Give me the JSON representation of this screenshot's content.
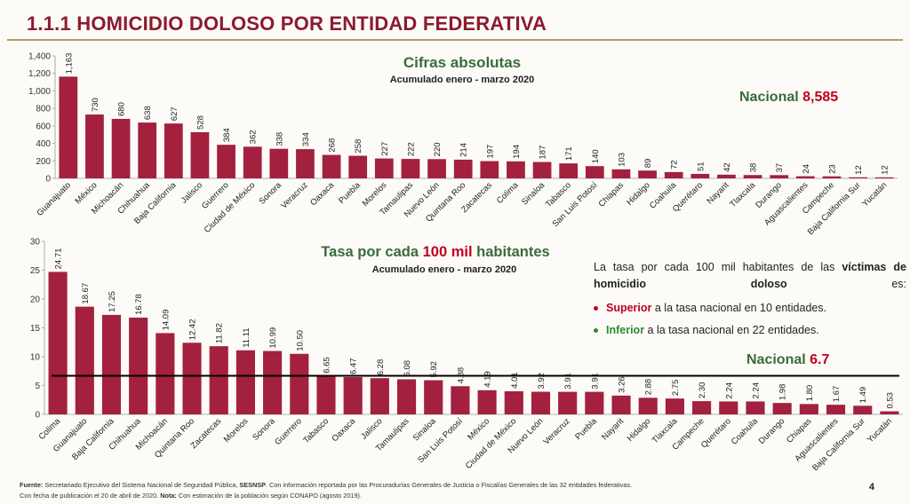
{
  "slide": {
    "title": "1.1.1 HOMICIDIO DOLOSO POR ENTIDAD FEDERATIVA",
    "page_number": "4",
    "footer": {
      "line1_bold": "Fuente:",
      "line1_a": " Secretariado Ejecutivo del Sistema Nacional de Seguridad Pública, ",
      "line1_bold2": "SESNSP",
      "line1_b": ". Con información reportada por las Procuradurías Generales de Justicia o Fiscalías Generales de las 32 entidades federativas.",
      "line2_a": "Con fecha de publicación el 20 de abril de 2020. ",
      "line2_bold": "Nota:",
      "line2_b": " Con estimación de la población según CONAPO (agosto 2019)."
    },
    "note": {
      "intro_a": "La tasa por cada 100 mil habitantes de las ",
      "intro_bold": "víctimas de homicidio doloso",
      "intro_b": " es:",
      "item1_bold": "Superior",
      "item1_rest": " a la tasa nacional en 10 entidades.",
      "item2_bold": "Inferior",
      "item2_rest": " a la tasa nacional en 22 entidades.",
      "superior_color": "#c0001b",
      "inferior_color": "#2e8b2e"
    }
  },
  "chart_data": [
    {
      "type": "bar",
      "title": "Cifras absolutas",
      "subtitle": "Acumulado enero - marzo 2020",
      "national_label": "Nacional",
      "national_value": "8,585",
      "ylim": [
        0,
        1400
      ],
      "yticks": [
        "0",
        "200",
        "400",
        "600",
        "800",
        "1,000",
        "1,200",
        "1,400"
      ],
      "bar_color": "#a3213e",
      "categories": [
        "Guanajuato",
        "México",
        "Michoacán",
        "Chihuahua",
        "Baja California",
        "Jalisco",
        "Guerrero",
        "Ciudad de México",
        "Sonora",
        "Veracruz",
        "Oaxaca",
        "Puebla",
        "Morelos",
        "Tamaulipas",
        "Nuevo León",
        "Quintana Roo",
        "Zacatecas",
        "Colima",
        "Sinaloa",
        "Tabasco",
        "San Luis Potosí",
        "Chiapas",
        "Hidalgo",
        "Coahuila",
        "Querétaro",
        "Nayarit",
        "Tlaxcala",
        "Durango",
        "Aguascalientes",
        "Campeche",
        "Baja California Sur",
        "Yucatán"
      ],
      "values": [
        1163,
        730,
        680,
        638,
        627,
        528,
        384,
        362,
        338,
        334,
        268,
        258,
        227,
        222,
        220,
        214,
        197,
        194,
        187,
        171,
        140,
        103,
        89,
        72,
        51,
        42,
        38,
        37,
        24,
        23,
        12,
        12
      ],
      "value_labels": [
        "1,163",
        "730",
        "680",
        "638",
        "627",
        "528",
        "384",
        "362",
        "338",
        "334",
        "268",
        "258",
        "227",
        "222",
        "220",
        "214",
        "197",
        "194",
        "187",
        "171",
        "140",
        "103",
        "89",
        "72",
        "51",
        "42",
        "38",
        "37",
        "24",
        "23",
        "12",
        "12"
      ]
    },
    {
      "type": "bar",
      "title_a": "Tasa por cada ",
      "title_red": "100 mil",
      "title_b": " habitantes",
      "subtitle": "Acumulado enero - marzo 2020",
      "national_label": "Nacional",
      "national_value": "6.7",
      "reference_value": 6.7,
      "ylim": [
        0,
        30
      ],
      "yticks": [
        "0",
        "5",
        "10",
        "15",
        "20",
        "25",
        "30"
      ],
      "bar_color": "#a3213e",
      "categories": [
        "Colima",
        "Guanajuato",
        "Baja California",
        "Chihuahua",
        "Michoacán",
        "Quintana Roo",
        "Zacatecas",
        "Morelos",
        "Sonora",
        "Guerrero",
        "Tabasco",
        "Oaxaca",
        "Jalisco",
        "Tamaulipas",
        "Sinaloa",
        "San Luis Potosí",
        "México",
        "Ciudad de México",
        "Nuevo León",
        "Veracruz",
        "Puebla",
        "Nayarit",
        "Hidalgo",
        "Tlaxcala",
        "Campeche",
        "Querétaro",
        "Coahuila",
        "Durango",
        "Chiapas",
        "Aguascalientes",
        "Baja California Sur",
        "Yucatán"
      ],
      "values": [
        24.71,
        18.67,
        17.25,
        16.78,
        14.09,
        12.42,
        11.82,
        11.11,
        10.99,
        10.5,
        6.65,
        6.47,
        6.28,
        6.08,
        5.92,
        4.88,
        4.19,
        4.01,
        3.92,
        3.91,
        3.91,
        3.26,
        2.88,
        2.75,
        2.3,
        2.24,
        2.24,
        1.98,
        1.8,
        1.67,
        1.49,
        0.53
      ],
      "value_labels": [
        "24.71",
        "18.67",
        "17.25",
        "16.78",
        "14.09",
        "12.42",
        "11.82",
        "11.11",
        "10.99",
        "10.50",
        "6.65",
        "6.47",
        "6.28",
        "6.08",
        "5.92",
        "4.88",
        "4.19",
        "4.01",
        "3.92",
        "3.91",
        "3.91",
        "3.26",
        "2.88",
        "2.75",
        "2.30",
        "2.24",
        "2.24",
        "1.98",
        "1.80",
        "1.67",
        "1.49",
        "0.53"
      ]
    }
  ]
}
